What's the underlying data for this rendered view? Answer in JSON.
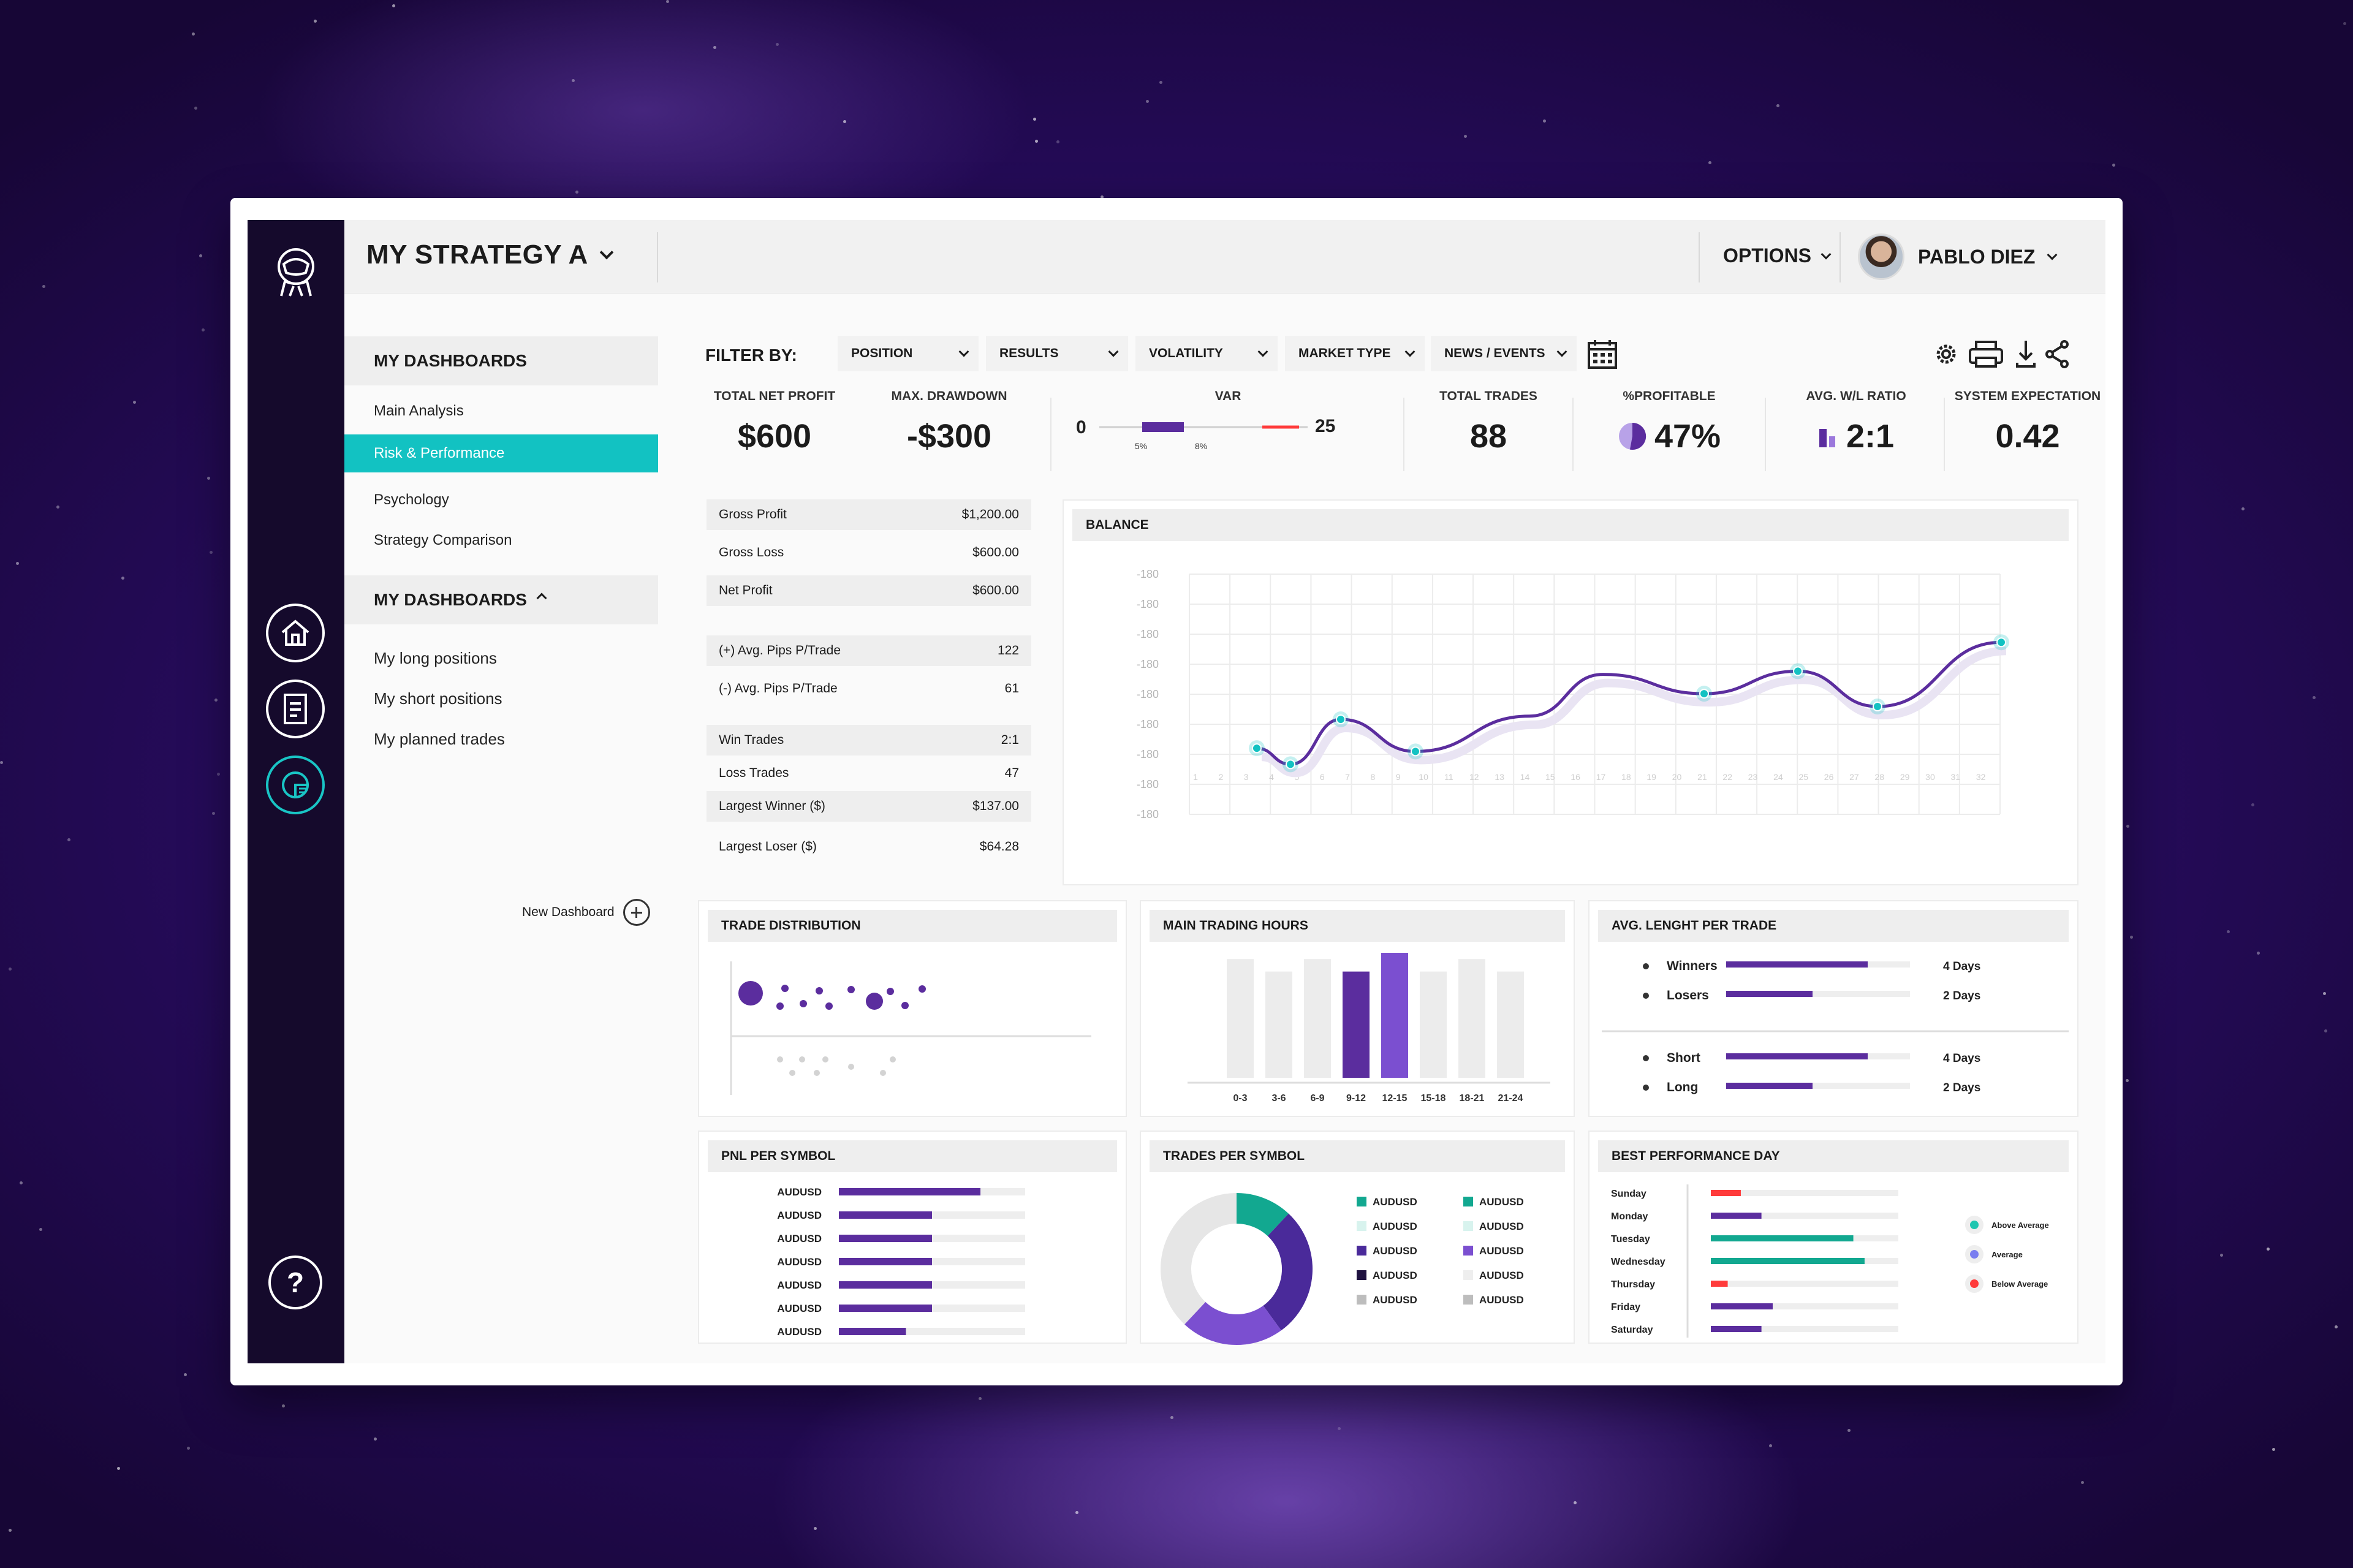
{
  "colors": {
    "accent_teal": "#12c2c2",
    "purple": "#5b2d9e",
    "purple_light": "#8b5cd6",
    "red": "#ff3b3b",
    "rail": "#150a2c"
  },
  "header": {
    "title": "MY STRATEGY A",
    "options_label": "OPTIONS",
    "user_name": "PABLO DIEZ"
  },
  "rail": {
    "icons": [
      "astronaut-logo-icon",
      "home-icon",
      "document-icon",
      "chart-icon"
    ],
    "help_label": "?"
  },
  "sidebar": {
    "section1_title": "MY DASHBOARDS",
    "items1": [
      "Main Analysis",
      "Risk & Performance",
      "Psychology",
      "Strategy Comparison"
    ],
    "active_index": 1,
    "section2_title": "MY DASHBOARDS",
    "items2": [
      "My long positions",
      "My short positions",
      "My planned trades"
    ],
    "new_dashboard": "New Dashboard"
  },
  "filter": {
    "label": "FILTER BY:",
    "selects": [
      "POSITION",
      "RESULTS",
      "VOLATILITY",
      "MARKET TYPE",
      "NEWS / EVENTS"
    ]
  },
  "kpis": {
    "net_profit": {
      "label": "TOTAL NET PROFIT",
      "value": "$600"
    },
    "drawdown": {
      "label": "MAX. DRAWDOWN",
      "value": "-$300"
    },
    "var": {
      "label": "VAR",
      "min": "0",
      "max": "25",
      "tick1": "5%",
      "tick2": "8%"
    },
    "trades": {
      "label": "TOTAL TRADES",
      "value": "88"
    },
    "profitable": {
      "label": "%PROFITABLE",
      "value": "47%"
    },
    "wl_ratio": {
      "label": "AVG. W/L RATIO",
      "value": "2:1"
    },
    "expectation": {
      "label": "SYSTEM EXPECTATION",
      "value": "0.42"
    }
  },
  "stats": [
    {
      "label": "Gross Profit",
      "value": "$1,200.00"
    },
    {
      "label": "Gross Loss",
      "value": "$600.00"
    },
    {
      "label": "Net Profit",
      "value": "$600.00"
    },
    {
      "label": "(+) Avg. Pips P/Trade",
      "value": "122"
    },
    {
      "label": "(-) Avg. Pips P/Trade",
      "value": "61"
    },
    {
      "label": "Win Trades",
      "value": "2:1"
    },
    {
      "label": "Loss Trades",
      "value": "47"
    },
    {
      "label": "Largest Winner ($)",
      "value": "$137.00"
    },
    {
      "label": "Largest Loser ($)",
      "value": "$64.28"
    }
  ],
  "balance": {
    "title": "BALANCE",
    "y_ticks": [
      "-180",
      "-180",
      "-180",
      "-180",
      "-180",
      "-180",
      "-180",
      "-180",
      "-180"
    ],
    "x_ticks": [
      "1",
      "2",
      "3",
      "4",
      "5",
      "6",
      "7",
      "8",
      "9",
      "10",
      "11",
      "12",
      "13",
      "14",
      "15",
      "16",
      "17",
      "18",
      "19",
      "20",
      "21",
      "22",
      "23",
      "24",
      "25",
      "26",
      "27",
      "28",
      "29",
      "30",
      "31",
      "32"
    ]
  },
  "chart_data": [
    {
      "type": "line",
      "title": "BALANCE",
      "x": [
        1,
        2,
        3,
        4,
        5,
        6,
        7,
        8,
        9,
        10
      ],
      "series": [
        {
          "values": [
            0.32,
            0.22,
            0.5,
            0.3,
            0.52,
            0.78,
            0.66,
            0.8,
            0.58,
            0.98
          ]
        }
      ]
    },
    {
      "type": "bar",
      "title": "MAIN TRADING HOURS",
      "categories": [
        "0-3",
        "3-6",
        "6-9",
        "9-12",
        "12-15",
        "15-18",
        "18-21",
        "21-24"
      ],
      "values": [
        0.95,
        0.85,
        0.95,
        0.85,
        1.0,
        0.85,
        0.95,
        0.85
      ],
      "highlighted": [
        "9-12",
        "12-15"
      ]
    },
    {
      "type": "bar",
      "title": "PNL PER SYMBOL",
      "categories": [
        "AUDUSD",
        "AUDUSD",
        "AUDUSD",
        "AUDUSD",
        "AUDUSD",
        "AUDUSD",
        "AUDUSD"
      ],
      "values": [
        0.76,
        0.5,
        0.5,
        0.5,
        0.5,
        0.5,
        0.36
      ]
    },
    {
      "type": "pie",
      "title": "TRADES PER SYMBOL",
      "categories": [
        "AUDUSD",
        "AUDUSD",
        "AUDUSD",
        "AUDUSD",
        "AUDUSD"
      ],
      "values": [
        12,
        28,
        22,
        0,
        38
      ],
      "colors": [
        "#12a890",
        "#4a2a9a",
        "#7b4fd0",
        "#1f1240",
        "#e6e6e6"
      ]
    },
    {
      "type": "bar",
      "title": "AVG. LENGHT PER TRADE",
      "categories": [
        "Winners",
        "Losers",
        "Short",
        "Long"
      ],
      "values": [
        4,
        2,
        4,
        2
      ]
    },
    {
      "type": "bar",
      "title": "BEST PERFORMANCE DAY",
      "categories": [
        "Sunday",
        "Monday",
        "Tuesday",
        "Wednesday",
        "Thursday",
        "Friday",
        "Saturday"
      ],
      "values": [
        0.16,
        0.27,
        0.76,
        0.82,
        0.09,
        0.33,
        0.27
      ],
      "status": [
        "below",
        "average",
        "above",
        "above",
        "below",
        "average",
        "average"
      ]
    }
  ],
  "trade_distribution": {
    "title": "TRADE DISTRIBUTION"
  },
  "trading_hours": {
    "title": "MAIN TRADING HOURS",
    "labels": [
      "0-3",
      "3-6",
      "6-9",
      "9-12",
      "12-15",
      "15-18",
      "18-21",
      "21-24"
    ]
  },
  "avg_length": {
    "title": "AVG. LENGHT PER TRADE",
    "rows": [
      {
        "label": "Winners",
        "value": "4 Days"
      },
      {
        "label": "Losers",
        "value": "2 Days"
      },
      {
        "label": "Short",
        "value": "4 Days"
      },
      {
        "label": "Long",
        "value": "2 Days"
      }
    ]
  },
  "pnl_symbol": {
    "title": "PNL PER SYMBOL",
    "labels": [
      "AUDUSD",
      "AUDUSD",
      "AUDUSD",
      "AUDUSD",
      "AUDUSD",
      "AUDUSD",
      "AUDUSD"
    ]
  },
  "trades_symbol": {
    "title": "TRADES PER SYMBOL",
    "legend_left": [
      "AUDUSD",
      "AUDUSD",
      "AUDUSD",
      "AUDUSD",
      "AUDUSD"
    ],
    "legend_right": [
      "AUDUSD",
      "AUDUSD",
      "AUDUSD",
      "AUDUSD",
      "AUDUSD"
    ]
  },
  "best_day": {
    "title": "BEST PERFORMANCE DAY",
    "days": [
      "Sunday",
      "Monday",
      "Tuesday",
      "Wednesday",
      "Thursday",
      "Friday",
      "Saturday"
    ],
    "legend": [
      "Above Average",
      "Average",
      "Below Average"
    ]
  }
}
